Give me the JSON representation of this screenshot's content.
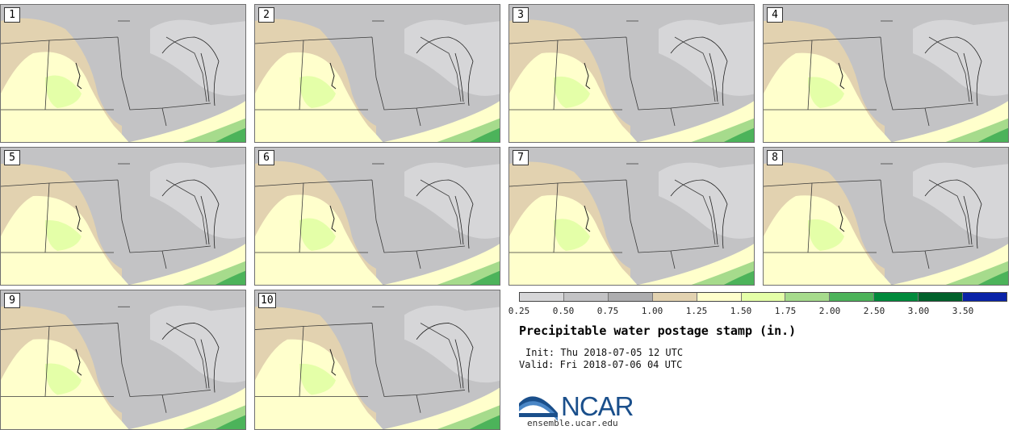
{
  "panels": [
    {
      "label": "1"
    },
    {
      "label": "2"
    },
    {
      "label": "3"
    },
    {
      "label": "4"
    },
    {
      "label": "5"
    },
    {
      "label": "6"
    },
    {
      "label": "7"
    },
    {
      "label": "8"
    },
    {
      "label": "9"
    },
    {
      "label": "10"
    }
  ],
  "colorbar": {
    "colors": [
      "#d6d6d8",
      "#c3c3c5",
      "#adadaf",
      "#e2d2b0",
      "#ffffcc",
      "#e4ffa8",
      "#a6db8c",
      "#4cb35a",
      "#008a3c",
      "#00612b",
      "#0a23a8"
    ],
    "labels": [
      "0.25",
      "0.50",
      "0.75",
      "1.00",
      "1.25",
      "1.50",
      "1.75",
      "2.00",
      "2.50",
      "3.00",
      "3.50"
    ]
  },
  "title": "Precipitable water postage stamp (in.)",
  "init": "Init: Thu 2018-07-05 12 UTC",
  "valid": "Valid: Fri 2018-07-06 04 UTC",
  "logo": {
    "text": "NCAR",
    "url": "ensemble.ucar.edu",
    "color": "#1a4f8b"
  }
}
